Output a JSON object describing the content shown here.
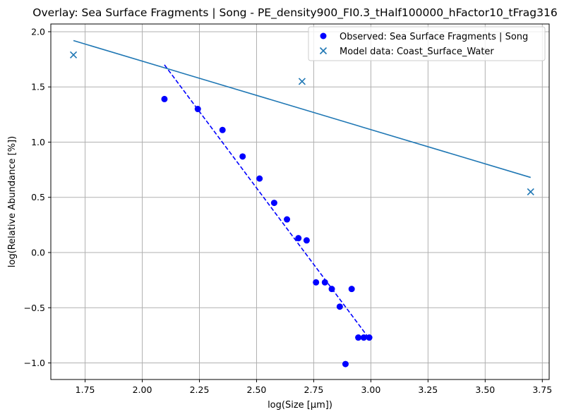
{
  "chart_data": {
    "type": "scatter",
    "title": "Overlay: Sea Surface Fragments | Song - PE_density900_FI0.3_tHalf100000_hFactor10_tFrag316",
    "xlabel": "log(Size [μm])",
    "ylabel": "log(Relative Abundance [%])",
    "xlim": [
      1.6,
      3.78
    ],
    "ylim": [
      -1.15,
      2.07
    ],
    "xticks": [
      1.75,
      2.0,
      2.25,
      2.5,
      2.75,
      3.0,
      3.25,
      3.5,
      3.75
    ],
    "xtick_labels": [
      "1.75",
      "2.00",
      "2.25",
      "2.50",
      "2.75",
      "3.00",
      "3.25",
      "3.50",
      "3.75"
    ],
    "yticks": [
      -1.0,
      -0.5,
      0.0,
      0.5,
      1.0,
      1.5,
      2.0
    ],
    "ytick_labels": [
      "−1.0",
      "−0.5",
      "0.0",
      "0.5",
      "1.0",
      "1.5",
      "2.0"
    ],
    "grid": true,
    "legend_position": "top-right",
    "series": [
      {
        "name": "Observed: Sea Surface Fragments | Song",
        "kind": "scatter",
        "marker": "circle",
        "color": "#0000ff",
        "x": [
          2.097,
          2.243,
          2.351,
          2.439,
          2.513,
          2.577,
          2.633,
          2.683,
          2.719,
          2.76,
          2.799,
          2.829,
          2.864,
          2.889,
          2.916,
          2.945,
          2.969,
          2.993
        ],
        "y": [
          1.39,
          1.3,
          1.11,
          0.87,
          0.67,
          0.45,
          0.3,
          0.13,
          0.11,
          -0.27,
          -0.27,
          -0.33,
          -0.49,
          -1.01,
          -0.33,
          -0.77,
          -0.77,
          -0.77
        ]
      },
      {
        "name": "Model data: Coast_Surface_Water",
        "kind": "scatter",
        "marker": "x",
        "color": "#1f77b4",
        "x": [
          1.699,
          2.699,
          3.699
        ],
        "y": [
          1.79,
          1.55,
          0.55
        ]
      },
      {
        "kind": "line",
        "style": "dashed",
        "color": "#0000ff",
        "x": [
          2.097,
          2.993
        ],
        "y": [
          1.7,
          -0.78
        ]
      },
      {
        "kind": "line",
        "style": "solid",
        "color": "#1f77b4",
        "x": [
          1.699,
          3.699
        ],
        "y": [
          1.92,
          0.68
        ]
      }
    ]
  }
}
